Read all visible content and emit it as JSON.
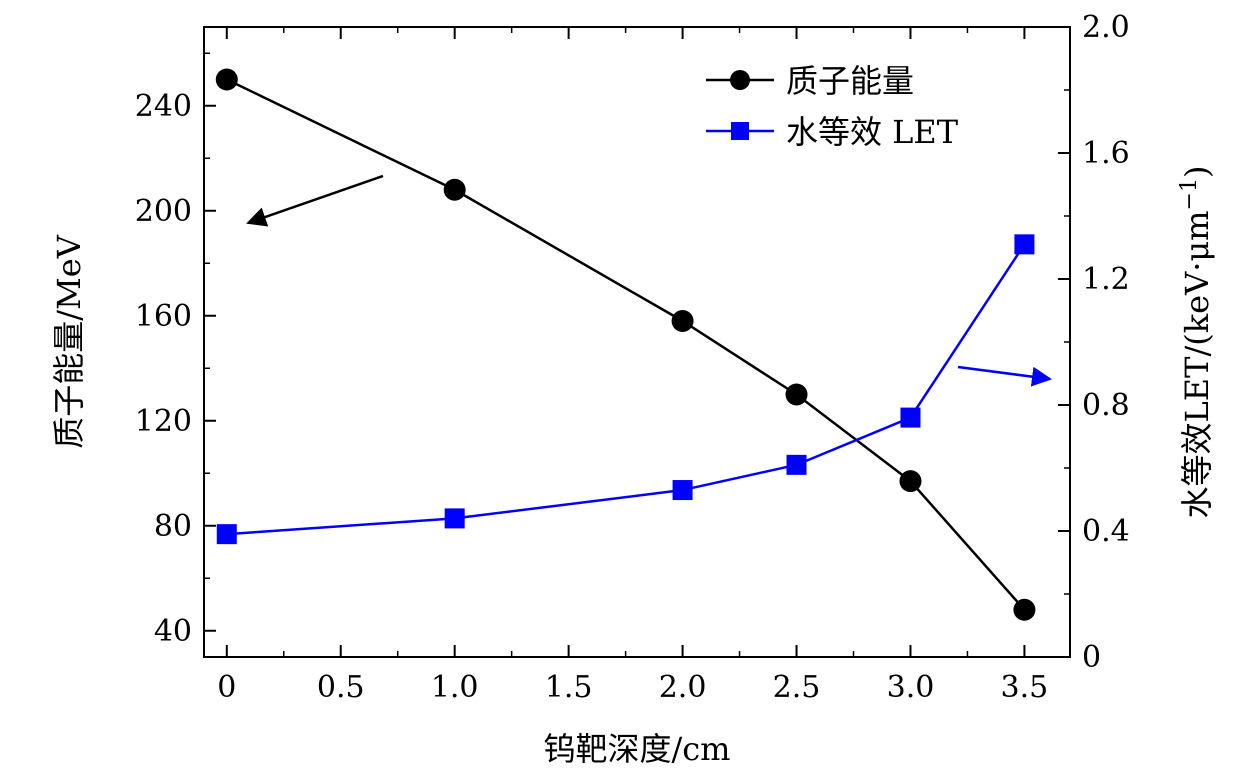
{
  "chart_data": {
    "type": "line",
    "x": [
      0,
      1.0,
      2.0,
      2.5,
      3.0,
      3.5
    ],
    "xlabel": "钨靶深度/cm",
    "xlim": [
      -0.1,
      3.7
    ],
    "xticks": [
      "0",
      "0.5",
      "1.0",
      "1.5",
      "2.0",
      "2.5",
      "3.0",
      "3.5"
    ],
    "xtick_values": [
      0,
      0.5,
      1.0,
      1.5,
      2.0,
      2.5,
      3.0,
      3.5
    ],
    "y_left": {
      "label": "质子能量/MeV",
      "lim": [
        30,
        270
      ],
      "ticks": [
        "40",
        "80",
        "120",
        "160",
        "200",
        "240"
      ],
      "tick_values": [
        40,
        80,
        120,
        160,
        200,
        240
      ]
    },
    "y_right": {
      "label": "水等效LET/(keV·μm",
      "label_sup": "−1",
      "label_close": ")",
      "lim": [
        0,
        2.0
      ],
      "ticks": [
        "0",
        "0.4",
        "0.8",
        "1.2",
        "1.6",
        "2.0"
      ],
      "tick_values": [
        0,
        0.4,
        0.8,
        1.2,
        1.6,
        2.0
      ]
    },
    "series": [
      {
        "name": "质子能量",
        "axis": "left",
        "color": "#000000",
        "marker": "circle",
        "values": [
          250,
          208,
          158,
          130,
          97,
          48
        ]
      },
      {
        "name": "水等效 LET",
        "axis": "right",
        "color": "#0000ff",
        "marker": "square",
        "values": [
          0.39,
          0.44,
          0.53,
          0.61,
          0.76,
          1.31
        ]
      }
    ],
    "legend_position": "top-right",
    "grid": false
  }
}
